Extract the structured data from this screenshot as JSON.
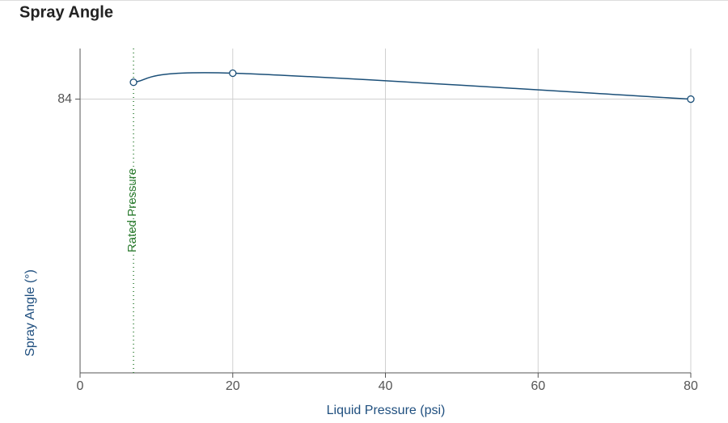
{
  "chart_data": {
    "type": "line",
    "title": "Spray Angle",
    "x_label": "Liquid Pressure (psi)",
    "y_label": "Spray Angle (°)",
    "x": [
      7,
      20,
      80
    ],
    "series": [
      {
        "name": "Spray Angle",
        "color": "#1b4f78",
        "values": [
          85.3,
          86,
          84
        ]
      }
    ],
    "xlim": [
      0,
      80
    ],
    "xticks": [
      0,
      20,
      40,
      60,
      80
    ],
    "ylim": [
      62.9,
      87.9
    ],
    "yticks": [
      84
    ],
    "grid": true,
    "annotations": [
      {
        "x": 7,
        "label": "Rated Pressure",
        "color": "#2e7d32"
      }
    ]
  }
}
